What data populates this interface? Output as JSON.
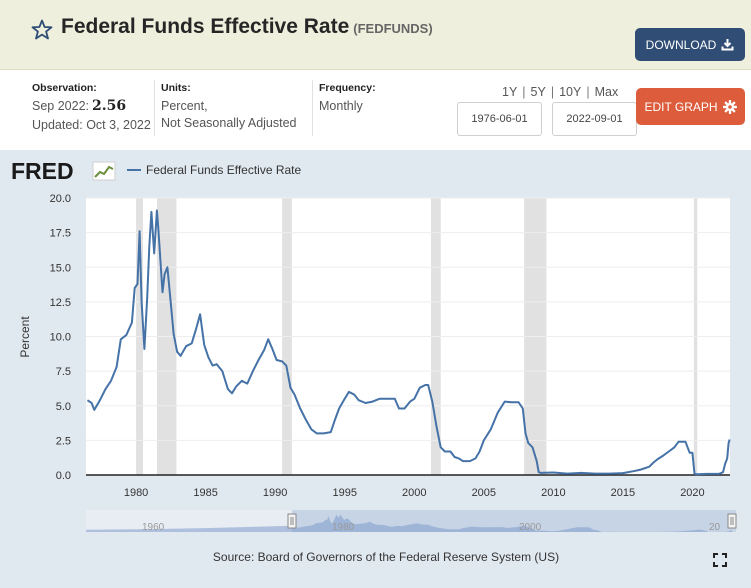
{
  "header": {
    "title": "Federal Funds Effective Rate",
    "series_id": "(FEDFUNDS)",
    "download_label": "DOWNLOAD",
    "accent": "#2f4d75"
  },
  "observation": {
    "label": "Observation:",
    "period": "Sep 2022:",
    "value": "2.56",
    "updated": "Updated: Oct 3, 2022"
  },
  "units": {
    "label": "Units:",
    "line1": "Percent,",
    "line2": "Not Seasonally Adjusted"
  },
  "frequency": {
    "label": "Frequency:",
    "value": "Monthly"
  },
  "ranges": [
    "1Y",
    "5Y",
    "10Y",
    "Max"
  ],
  "date_start": "1976-06-01",
  "date_end": "2022-09-01",
  "edit_label": "EDIT GRAPH",
  "edit_color": "#dc5c3c",
  "chart_logo": "FRED",
  "source": "Source: Board of Governors of the Federal Reserve System (US)",
  "chart_data": {
    "type": "line",
    "title": "Federal Funds Effective Rate",
    "xlabel": "",
    "ylabel": "Percent",
    "xlim": [
      1976.4,
      2022.7
    ],
    "ylim": [
      0,
      20
    ],
    "x_ticks": [
      "1980",
      "1985",
      "1990",
      "1995",
      "2000",
      "2005",
      "2010",
      "2015",
      "2020"
    ],
    "y_ticks": [
      "0.0",
      "2.5",
      "5.0",
      "7.5",
      "10.0",
      "12.5",
      "15.0",
      "17.5",
      "20.0"
    ],
    "line_color": "#4572a7",
    "recessions": [
      [
        1980.0,
        1980.5
      ],
      [
        1981.5,
        1982.9
      ],
      [
        1990.5,
        1991.2
      ],
      [
        2001.2,
        2001.9
      ],
      [
        2007.9,
        2009.5
      ],
      [
        2020.1,
        2020.35
      ]
    ],
    "series": [
      {
        "name": "Federal Funds Effective Rate",
        "x": [
          1976.5,
          1976.8,
          1977.0,
          1977.4,
          1977.8,
          1978.2,
          1978.6,
          1978.9,
          1979.3,
          1979.7,
          1979.9,
          1980.1,
          1980.25,
          1980.4,
          1980.6,
          1980.8,
          1980.95,
          1981.1,
          1981.3,
          1981.5,
          1981.6,
          1981.75,
          1981.9,
          1982.05,
          1982.25,
          1982.5,
          1982.7,
          1982.95,
          1983.2,
          1983.6,
          1984.0,
          1984.3,
          1984.6,
          1984.9,
          1985.2,
          1985.5,
          1985.8,
          1986.2,
          1986.6,
          1986.9,
          1987.2,
          1987.6,
          1988.0,
          1988.4,
          1988.8,
          1989.2,
          1989.5,
          1989.8,
          1990.1,
          1990.5,
          1990.8,
          1991.1,
          1991.4,
          1991.8,
          1992.2,
          1992.6,
          1993.0,
          1993.5,
          1994.0,
          1994.3,
          1994.6,
          1995.0,
          1995.3,
          1995.7,
          1996.0,
          1996.5,
          1997.0,
          1997.5,
          1998.0,
          1998.6,
          1998.9,
          1999.3,
          1999.7,
          2000.0,
          2000.4,
          2000.8,
          2001.0,
          2001.3,
          2001.6,
          2001.9,
          2002.2,
          2002.6,
          2002.9,
          2003.2,
          2003.5,
          2004.0,
          2004.4,
          2004.7,
          2005.0,
          2005.5,
          2006.0,
          2006.5,
          2007.0,
          2007.5,
          2007.8,
          2008.0,
          2008.2,
          2008.5,
          2008.8,
          2008.95,
          2009.1,
          2010.0,
          2011.0,
          2012.0,
          2013.0,
          2014.0,
          2015.0,
          2015.9,
          2016.3,
          2016.9,
          2017.2,
          2017.5,
          2017.9,
          2018.3,
          2018.7,
          2019.0,
          2019.5,
          2019.8,
          2020.0,
          2020.15,
          2020.25,
          2020.4,
          2021.0,
          2021.9,
          2022.2,
          2022.35,
          2022.5,
          2022.6,
          2022.67
        ],
        "y": [
          5.4,
          5.2,
          4.7,
          5.4,
          6.2,
          6.8,
          7.8,
          9.8,
          10.1,
          11.0,
          13.5,
          13.8,
          17.6,
          12.5,
          9.1,
          12.8,
          16.5,
          19.0,
          16.0,
          19.1,
          17.8,
          15.5,
          13.2,
          14.5,
          15.0,
          12.4,
          10.2,
          8.9,
          8.6,
          9.3,
          9.5,
          10.5,
          11.6,
          9.4,
          8.5,
          7.9,
          8.0,
          7.5,
          6.2,
          5.9,
          6.4,
          6.8,
          6.6,
          7.5,
          8.3,
          9.0,
          9.8,
          9.1,
          8.3,
          8.2,
          7.9,
          6.3,
          5.8,
          4.8,
          4.0,
          3.3,
          3.0,
          3.0,
          3.1,
          4.0,
          4.8,
          5.5,
          6.0,
          5.8,
          5.4,
          5.2,
          5.3,
          5.5,
          5.5,
          5.5,
          4.8,
          4.8,
          5.3,
          5.5,
          6.3,
          6.5,
          6.5,
          5.3,
          3.5,
          2.0,
          1.7,
          1.7,
          1.3,
          1.2,
          1.0,
          1.0,
          1.2,
          1.7,
          2.5,
          3.3,
          4.5,
          5.3,
          5.25,
          5.25,
          4.8,
          3.0,
          2.3,
          2.0,
          1.0,
          0.2,
          0.15,
          0.18,
          0.1,
          0.15,
          0.1,
          0.1,
          0.14,
          0.3,
          0.4,
          0.6,
          0.9,
          1.15,
          1.4,
          1.7,
          2.0,
          2.4,
          2.4,
          1.6,
          1.6,
          0.1,
          0.05,
          0.05,
          0.08,
          0.08,
          0.2,
          0.8,
          1.2,
          2.3,
          2.56
        ]
      }
    ]
  }
}
